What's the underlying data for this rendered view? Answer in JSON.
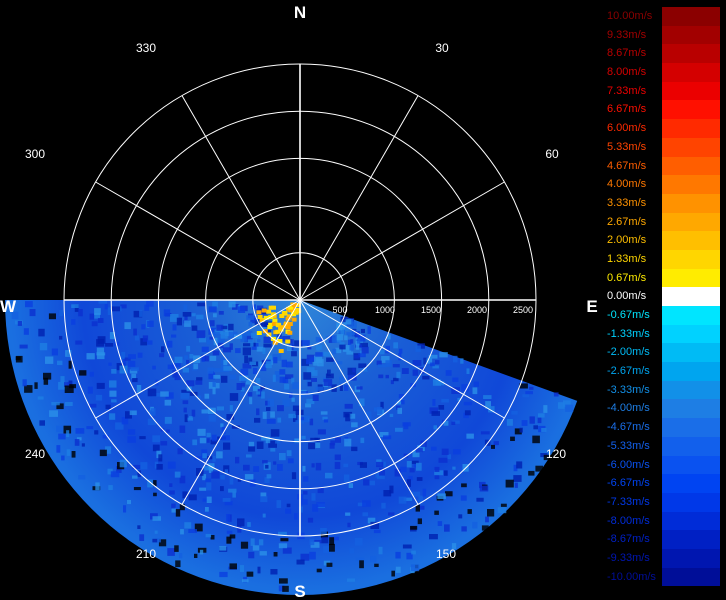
{
  "chart_data": {
    "type": "polar-ppi",
    "compass": {
      "north": "N",
      "south": "S",
      "east": "E",
      "west": "W"
    },
    "azimuth_labels": [
      "30",
      "60",
      "120",
      "150",
      "210",
      "240",
      "300",
      "330"
    ],
    "range_labels": [
      "500",
      "1000",
      "1500",
      "2000",
      "2500"
    ],
    "range_max": 2500,
    "rings": [
      500,
      1000,
      1500,
      2000,
      2500
    ],
    "spokes_deg": [
      0,
      30,
      60,
      90,
      120,
      150,
      180,
      210,
      240,
      270,
      300,
      330
    ],
    "scan_sector_deg": [
      110,
      270
    ],
    "legend": [
      {
        "label": "10.00m/s",
        "color": "#8b0000"
      },
      {
        "label": "9.33m/s",
        "color": "#a20000"
      },
      {
        "label": "8.67m/s",
        "color": "#b90000"
      },
      {
        "label": "8.00m/s",
        "color": "#d40000"
      },
      {
        "label": "7.33m/s",
        "color": "#eb0000"
      },
      {
        "label": "6.67m/s",
        "color": "#ff1000"
      },
      {
        "label": "6.00m/s",
        "color": "#ff2a00"
      },
      {
        "label": "5.33m/s",
        "color": "#ff4400"
      },
      {
        "label": "4.67m/s",
        "color": "#ff5e00"
      },
      {
        "label": "4.00m/s",
        "color": "#ff7800"
      },
      {
        "label": "3.33m/s",
        "color": "#ff9200"
      },
      {
        "label": "2.67m/s",
        "color": "#ffa800"
      },
      {
        "label": "2.00m/s",
        "color": "#ffbf00"
      },
      {
        "label": "1.33m/s",
        "color": "#ffd600"
      },
      {
        "label": "0.67m/s",
        "color": "#ffec00"
      },
      {
        "label": "0.00m/s",
        "color": "#ffffff"
      },
      {
        "label": "-0.67m/s",
        "color": "#00e5ff"
      },
      {
        "label": "-1.33m/s",
        "color": "#00d2ff"
      },
      {
        "label": "-2.00m/s",
        "color": "#00bbf5"
      },
      {
        "label": "-2.67m/s",
        "color": "#00a5ef"
      },
      {
        "label": "-3.33m/s",
        "color": "#1290e8"
      },
      {
        "label": "-4.00m/s",
        "color": "#1e7ee4"
      },
      {
        "label": "-4.67m/s",
        "color": "#1a6ee8"
      },
      {
        "label": "-5.33m/s",
        "color": "#1260ec"
      },
      {
        "label": "-6.00m/s",
        "color": "#0a52f0"
      },
      {
        "label": "-6.67m/s",
        "color": "#0044f2"
      },
      {
        "label": "-7.33m/s",
        "color": "#0038e8"
      },
      {
        "label": "-8.00m/s",
        "color": "#002cd8"
      },
      {
        "label": "-8.67m/s",
        "color": "#0020c4"
      },
      {
        "label": "-9.33m/s",
        "color": "#0016b0"
      },
      {
        "label": "-10.00m/s",
        "color": "#000e98"
      }
    ]
  }
}
